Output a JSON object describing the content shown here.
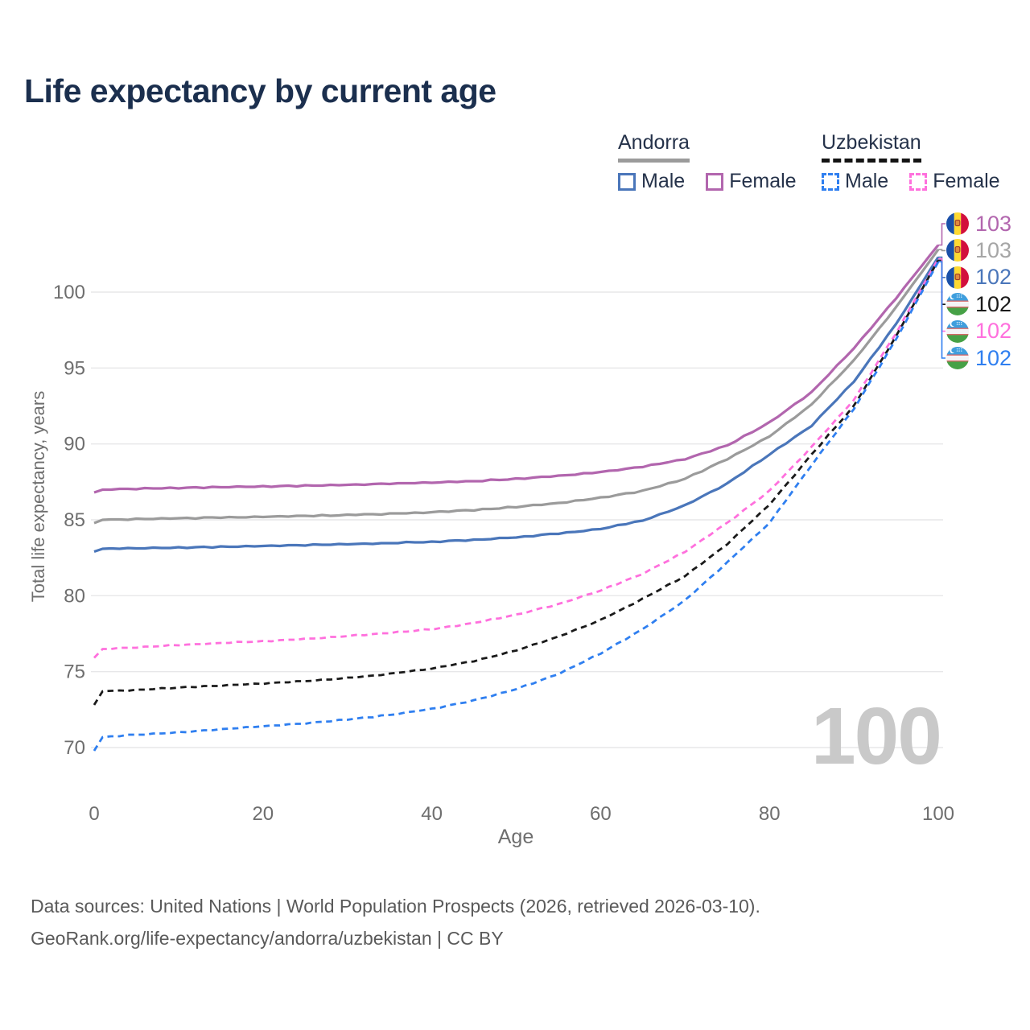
{
  "title": "Life expectancy by current age",
  "watermark": "100",
  "legend": {
    "groups": [
      {
        "country": "Andorra",
        "line_style": "solid",
        "underline_color": "#9b9b9b",
        "items": [
          {
            "label": "Male",
            "color": "#4a76ba",
            "dashed": false
          },
          {
            "label": "Female",
            "color": "#b266ae",
            "dashed": false
          }
        ]
      },
      {
        "country": "Uzbekistan",
        "line_style": "dashed",
        "underline_color": "#141414",
        "items": [
          {
            "label": "Male",
            "color": "#2f7ff0",
            "dashed": true
          },
          {
            "label": "Female",
            "color": "#ff70dd",
            "dashed": true
          }
        ]
      }
    ]
  },
  "chart_data": {
    "type": "line",
    "title": "Life expectancy by current age",
    "xlabel": "Age",
    "ylabel": "Total life expectancy, years",
    "x_ticks": [
      0,
      20,
      40,
      60,
      80,
      100
    ],
    "y_ticks": [
      70,
      75,
      80,
      85,
      90,
      95,
      100
    ],
    "xlim": [
      0,
      100
    ],
    "ylim": [
      68.5,
      104
    ],
    "grid": "horizontal",
    "ages": [
      0,
      1,
      5,
      10,
      15,
      20,
      25,
      30,
      35,
      40,
      45,
      50,
      55,
      60,
      65,
      70,
      75,
      80,
      85,
      90,
      95,
      100
    ],
    "series": [
      {
        "name": "Andorra Female",
        "country": "Andorra",
        "sex": "Female",
        "color": "#b266ae",
        "dashed": false,
        "values": [
          86.8,
          87.0,
          87.05,
          87.1,
          87.15,
          87.2,
          87.25,
          87.3,
          87.38,
          87.45,
          87.55,
          87.7,
          87.9,
          88.15,
          88.5,
          89.0,
          89.9,
          91.4,
          93.4,
          96.3,
          99.6,
          103.1
        ]
      },
      {
        "name": "Andorra",
        "country": "Andorra",
        "sex": "Both",
        "color": "#9b9b9b",
        "dashed": false,
        "values": [
          84.8,
          85.0,
          85.05,
          85.1,
          85.15,
          85.2,
          85.25,
          85.32,
          85.4,
          85.5,
          85.65,
          85.85,
          86.1,
          86.45,
          86.9,
          87.7,
          89.0,
          90.5,
          92.6,
          95.5,
          99.0,
          102.8
        ]
      },
      {
        "name": "Andorra Male",
        "country": "Andorra",
        "sex": "Male",
        "color": "#4a76ba",
        "dashed": false,
        "values": [
          82.9,
          83.1,
          83.13,
          83.17,
          83.22,
          83.28,
          83.33,
          83.4,
          83.47,
          83.55,
          83.68,
          83.85,
          84.1,
          84.4,
          84.95,
          85.95,
          87.4,
          89.3,
          91.2,
          94.1,
          97.9,
          102.3
        ]
      },
      {
        "name": "Uzbekistan Female",
        "country": "Uzbekistan",
        "sex": "Female",
        "color": "#ff70dd",
        "dashed": true,
        "values": [
          75.9,
          76.5,
          76.6,
          76.75,
          76.88,
          77.0,
          77.15,
          77.35,
          77.55,
          77.8,
          78.2,
          78.75,
          79.45,
          80.35,
          81.45,
          82.9,
          84.8,
          86.9,
          89.8,
          92.9,
          97.3,
          102.2
        ]
      },
      {
        "name": "Uzbekistan",
        "country": "Uzbekistan",
        "sex": "Both",
        "color": "#1a1a1a",
        "dashed": true,
        "values": [
          72.8,
          73.7,
          73.8,
          73.95,
          74.08,
          74.22,
          74.38,
          74.58,
          74.85,
          75.2,
          75.7,
          76.4,
          77.3,
          78.4,
          79.8,
          81.3,
          83.4,
          86.0,
          89.3,
          92.5,
          97.1,
          102.1
        ]
      },
      {
        "name": "Uzbekistan Male",
        "country": "Uzbekistan",
        "sex": "Male",
        "color": "#2f7ff0",
        "dashed": true,
        "values": [
          69.8,
          70.7,
          70.85,
          71.0,
          71.2,
          71.4,
          71.6,
          71.85,
          72.15,
          72.55,
          73.1,
          73.85,
          74.85,
          76.2,
          77.8,
          79.7,
          82.2,
          84.8,
          88.6,
          92.3,
          96.9,
          102.0
        ]
      }
    ]
  },
  "end_labels": [
    {
      "value": "103",
      "flag": "andorra",
      "series": 0,
      "color": "#b266ae"
    },
    {
      "value": "103",
      "flag": "andorra",
      "series": 1,
      "color": "#a6a6a6"
    },
    {
      "value": "102",
      "flag": "andorra",
      "series": 2,
      "color": "#4a76ba"
    },
    {
      "value": "102",
      "flag": "uzbekistan",
      "series": 4,
      "color": "#1a1a1a"
    },
    {
      "value": "102",
      "flag": "uzbekistan",
      "series": 3,
      "color": "#ff70dd"
    },
    {
      "value": "102",
      "flag": "uzbekistan",
      "series": 5,
      "color": "#2f7ff0"
    }
  ],
  "footer": {
    "line1": "Data sources: United Nations | World Population Prospects (2026, retrieved 2026-03-10).",
    "line2": "GeoRank.org/life-expectancy/andorra/uzbekistan | CC BY"
  }
}
